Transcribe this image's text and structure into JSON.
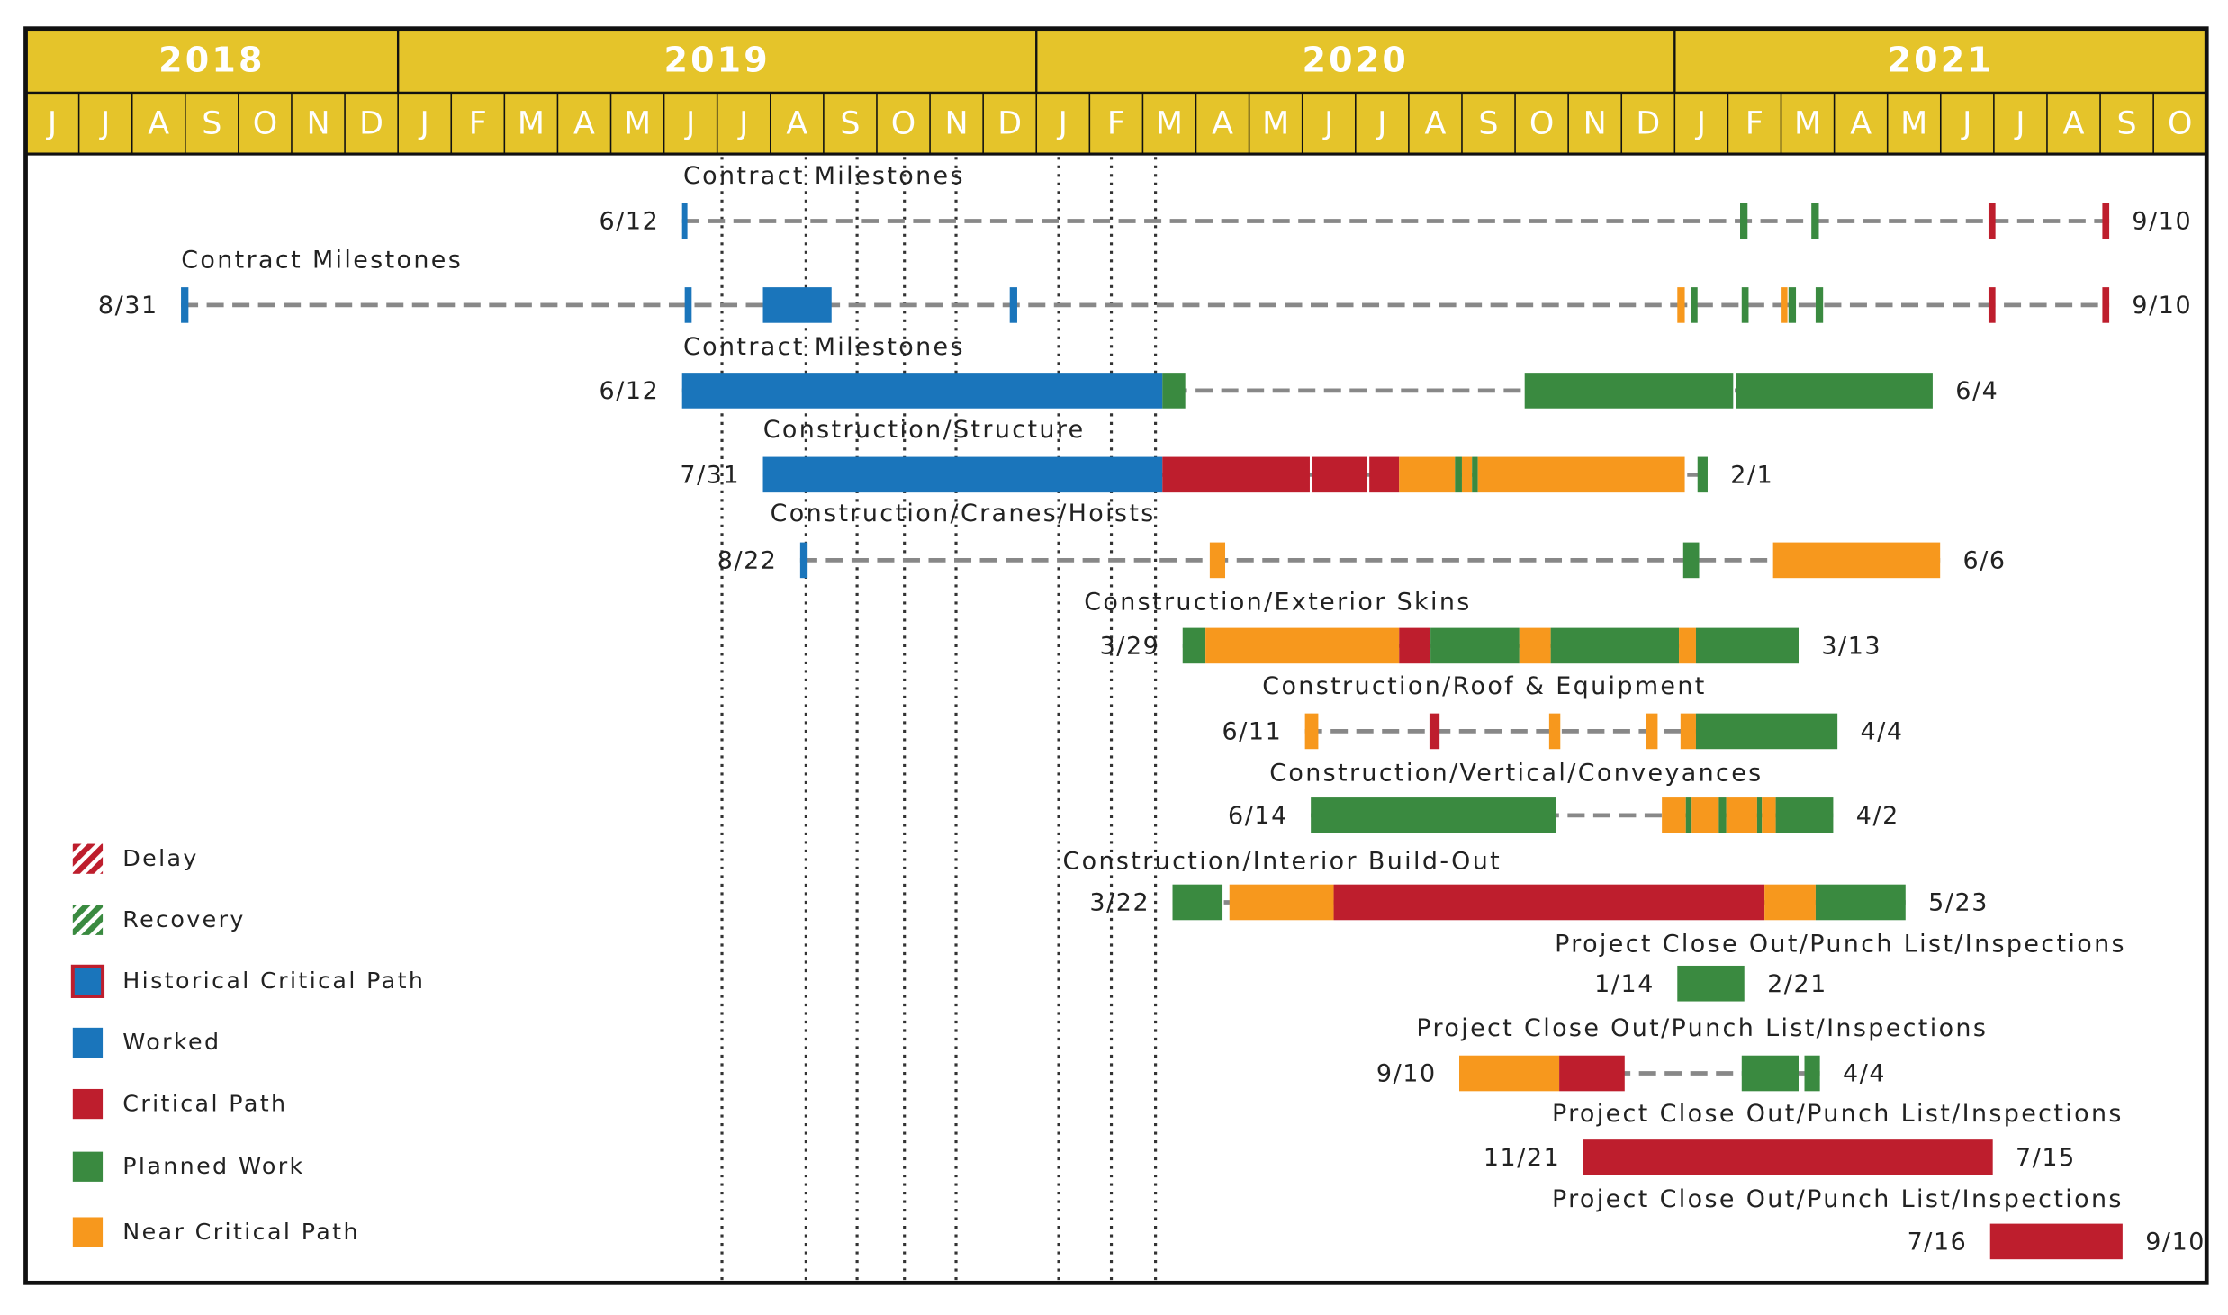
{
  "chart_data": {
    "type": "gantt",
    "years": [
      {
        "label": "2018",
        "start": 0,
        "end": 7
      },
      {
        "label": "2019",
        "start": 7,
        "end": 19
      },
      {
        "label": "2020",
        "start": 19,
        "end": 31
      },
      {
        "label": "2021",
        "start": 31,
        "end": 41
      }
    ],
    "categories": [
      "J",
      "J",
      "A",
      "S",
      "O",
      "N",
      "D",
      "J",
      "F",
      "M",
      "A",
      "M",
      "J",
      "J",
      "A",
      "S",
      "O",
      "N",
      "D",
      "J",
      "F",
      "M",
      "A",
      "M",
      "J",
      "J",
      "A",
      "S",
      "O",
      "N",
      "D",
      "J",
      "F",
      "M",
      "A",
      "M",
      "J",
      "J",
      "A",
      "S",
      "O"
    ],
    "xlim": [
      0,
      41
    ],
    "reference_lines": [
      13.09,
      14.67,
      15.63,
      16.52,
      17.49,
      19.42,
      20.41,
      21.24
    ],
    "statuses": {
      "worked": "#1a75bb",
      "critical": "#be1e2d",
      "planned": "#3a8a40",
      "near": "#f7981d"
    },
    "legend": [
      {
        "label": "Delay",
        "style": "hatch",
        "color": "#be1e2d"
      },
      {
        "label": "Recovery",
        "style": "hatch",
        "color": "#3a8a40"
      },
      {
        "label": "Historical Critical Path",
        "style": "outlined",
        "color": "#1a75bb"
      },
      {
        "label": "Worked",
        "style": "solid",
        "color": "#1a75bb"
      },
      {
        "label": "Critical Path",
        "style": "solid",
        "color": "#be1e2d"
      },
      {
        "label": "Planned Work",
        "style": "solid",
        "color": "#3a8a40"
      },
      {
        "label": "Near Critical Path",
        "style": "solid",
        "color": "#f7981d"
      }
    ],
    "rows": [
      {
        "title": "Contract Milestones",
        "start_label": "6/12",
        "end_label": "9/10",
        "segments": [
          {
            "start": 12.34,
            "end": 12.44,
            "status": "worked"
          },
          {
            "start": 32.23,
            "end": 32.37,
            "status": "planned"
          },
          {
            "start": 33.57,
            "end": 33.71,
            "status": "planned"
          },
          {
            "start": 36.9,
            "end": 37.03,
            "status": "critical"
          },
          {
            "start": 39.04,
            "end": 39.17,
            "status": "critical"
          }
        ]
      },
      {
        "title": "Contract Milestones",
        "start_label": "8/31",
        "end_label": "9/10",
        "segments": [
          {
            "start": 2.92,
            "end": 3.06,
            "status": "worked"
          },
          {
            "start": 12.39,
            "end": 12.52,
            "status": "worked"
          },
          {
            "start": 13.86,
            "end": 15.15,
            "status": "worked"
          },
          {
            "start": 18.5,
            "end": 18.64,
            "status": "worked"
          },
          {
            "start": 31.05,
            "end": 31.19,
            "status": "near"
          },
          {
            "start": 31.3,
            "end": 31.43,
            "status": "planned"
          },
          {
            "start": 32.26,
            "end": 32.39,
            "status": "planned"
          },
          {
            "start": 33.01,
            "end": 33.12,
            "status": "near"
          },
          {
            "start": 33.14,
            "end": 33.28,
            "status": "planned"
          },
          {
            "start": 33.65,
            "end": 33.79,
            "status": "planned"
          },
          {
            "start": 36.9,
            "end": 37.03,
            "status": "critical"
          },
          {
            "start": 39.04,
            "end": 39.17,
            "status": "critical"
          }
        ]
      },
      {
        "title": "Contract Milestones",
        "start_label": "6/12",
        "end_label": "6/4",
        "segments": [
          {
            "start": 12.34,
            "end": 21.37,
            "status": "worked"
          },
          {
            "start": 21.37,
            "end": 21.8,
            "status": "planned"
          },
          {
            "start": 28.18,
            "end": 32.1,
            "status": "planned"
          },
          {
            "start": 32.15,
            "end": 35.85,
            "status": "planned"
          }
        ]
      },
      {
        "title": "Construction/Structure",
        "start_label": "7/31",
        "end_label": "2/1",
        "segments": [
          {
            "start": 13.86,
            "end": 21.37,
            "status": "worked"
          },
          {
            "start": 21.37,
            "end": 24.14,
            "status": "critical"
          },
          {
            "start": 24.19,
            "end": 25.21,
            "status": "critical"
          },
          {
            "start": 25.26,
            "end": 25.82,
            "status": "critical"
          },
          {
            "start": 25.82,
            "end": 26.87,
            "status": "near"
          },
          {
            "start": 26.87,
            "end": 27.0,
            "status": "planned"
          },
          {
            "start": 27.0,
            "end": 27.19,
            "status": "near"
          },
          {
            "start": 27.19,
            "end": 27.3,
            "status": "planned"
          },
          {
            "start": 27.3,
            "end": 31.19,
            "status": "near"
          },
          {
            "start": 31.43,
            "end": 31.62,
            "status": "planned"
          }
        ]
      },
      {
        "title": "Construction/Cranes/Hoists",
        "start_label": "8/22",
        "end_label": "6/6",
        "segments": [
          {
            "start": 14.56,
            "end": 14.7,
            "status": "worked"
          },
          {
            "start": 22.26,
            "end": 22.55,
            "status": "near"
          },
          {
            "start": 31.16,
            "end": 31.46,
            "status": "planned"
          },
          {
            "start": 32.85,
            "end": 35.99,
            "status": "near"
          }
        ]
      },
      {
        "title": "Construction/Exterior Skins",
        "start_label": "3/29",
        "end_label": "3/13",
        "segments": [
          {
            "start": 21.75,
            "end": 22.18,
            "status": "planned"
          },
          {
            "start": 22.18,
            "end": 25.82,
            "status": "near"
          },
          {
            "start": 25.82,
            "end": 26.41,
            "status": "critical"
          },
          {
            "start": 26.41,
            "end": 28.08,
            "status": "planned"
          },
          {
            "start": 28.08,
            "end": 28.67,
            "status": "near"
          },
          {
            "start": 28.67,
            "end": 31.08,
            "status": "planned"
          },
          {
            "start": 31.08,
            "end": 31.4,
            "status": "near"
          },
          {
            "start": 31.4,
            "end": 33.33,
            "status": "planned"
          }
        ]
      },
      {
        "title": "Construction/Roof & Equipment",
        "start_label": "6/11",
        "end_label": "4/4",
        "segments": [
          {
            "start": 24.05,
            "end": 24.3,
            "status": "near"
          },
          {
            "start": 26.39,
            "end": 26.58,
            "status": "critical"
          },
          {
            "start": 28.64,
            "end": 28.85,
            "status": "near"
          },
          {
            "start": 30.46,
            "end": 30.68,
            "status": "near"
          },
          {
            "start": 31.11,
            "end": 31.4,
            "status": "near"
          },
          {
            "start": 31.4,
            "end": 34.06,
            "status": "planned"
          }
        ]
      },
      {
        "title": "Construction/Vertical/Conveyances",
        "start_label": "6/14",
        "end_label": "4/2",
        "segments": [
          {
            "start": 24.16,
            "end": 28.77,
            "status": "planned"
          },
          {
            "start": 30.76,
            "end": 31.21,
            "status": "near"
          },
          {
            "start": 31.21,
            "end": 31.32,
            "status": "planned"
          },
          {
            "start": 31.32,
            "end": 31.83,
            "status": "near"
          },
          {
            "start": 31.83,
            "end": 31.97,
            "status": "planned"
          },
          {
            "start": 31.97,
            "end": 32.55,
            "status": "near"
          },
          {
            "start": 32.55,
            "end": 32.64,
            "status": "planned"
          },
          {
            "start": 32.64,
            "end": 32.9,
            "status": "near"
          },
          {
            "start": 32.9,
            "end": 33.98,
            "status": "planned"
          }
        ]
      },
      {
        "title": "Construction/Interior Build-Out",
        "start_label": "3/22",
        "end_label": "5/23",
        "segments": [
          {
            "start": 21.56,
            "end": 22.5,
            "status": "planned"
          },
          {
            "start": 22.63,
            "end": 24.59,
            "status": "near"
          },
          {
            "start": 24.59,
            "end": 32.69,
            "status": "critical"
          },
          {
            "start": 32.69,
            "end": 33.65,
            "status": "near"
          },
          {
            "start": 33.65,
            "end": 35.34,
            "status": "planned"
          }
        ]
      },
      {
        "title": "Project Close Out/Punch List/Inspections",
        "start_label": "1/14",
        "end_label": "2/21",
        "segments": [
          {
            "start": 31.05,
            "end": 32.31,
            "status": "planned"
          }
        ]
      },
      {
        "title": "Project Close Out/Punch List/Inspections",
        "start_label": "9/10",
        "end_label": "4/4",
        "segments": [
          {
            "start": 26.95,
            "end": 28.83,
            "status": "near"
          },
          {
            "start": 28.83,
            "end": 30.06,
            "status": "critical"
          },
          {
            "start": 32.26,
            "end": 33.33,
            "status": "planned"
          },
          {
            "start": 33.44,
            "end": 33.73,
            "status": "planned"
          }
        ]
      },
      {
        "title": "Project Close Out/Punch List/Inspections",
        "start_label": "11/21",
        "end_label": "7/15",
        "segments": [
          {
            "start": 29.28,
            "end": 36.98,
            "status": "critical"
          }
        ]
      },
      {
        "title": "Project Close Out/Punch List/Inspections",
        "start_label": "7/16",
        "end_label": "9/10",
        "segments": [
          {
            "start": 36.93,
            "end": 39.42,
            "status": "critical"
          }
        ]
      }
    ]
  }
}
